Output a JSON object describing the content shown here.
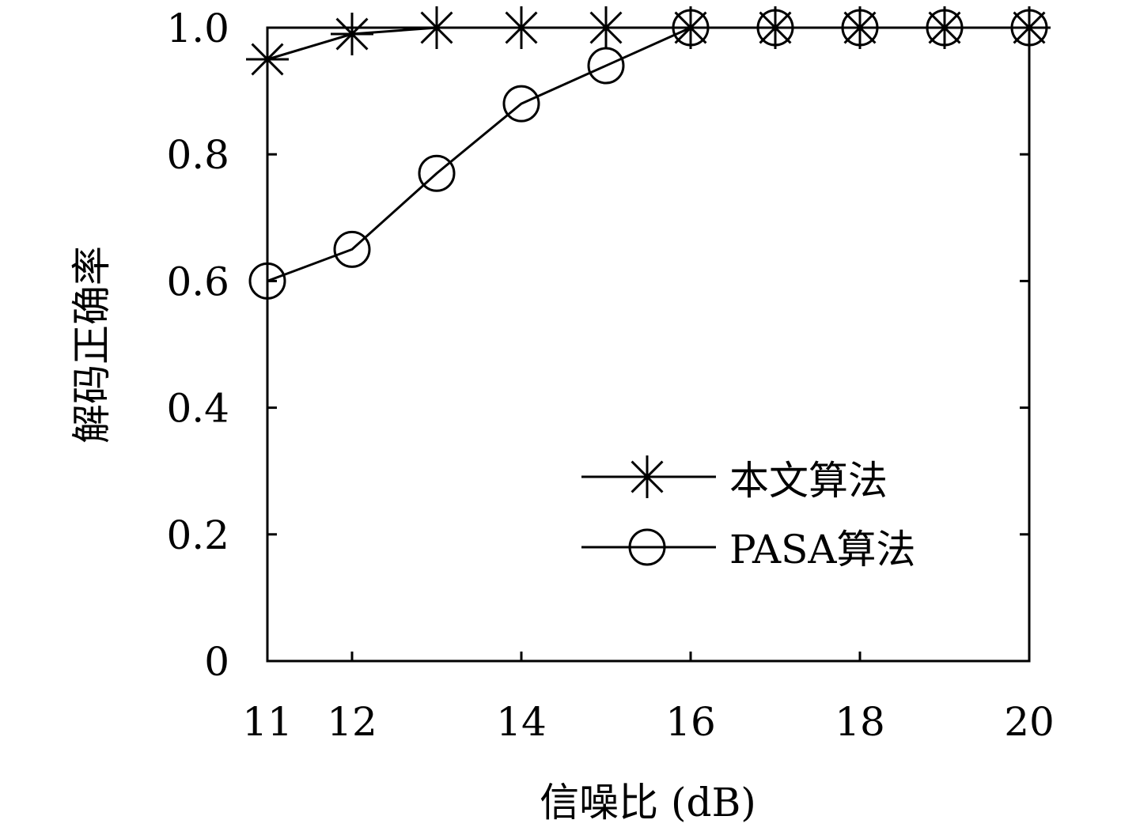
{
  "chart_data": {
    "type": "line",
    "title": "",
    "xlabel": "信噪比 (dB)",
    "ylabel": "解码正确率",
    "x": [
      11,
      12,
      13,
      14,
      15,
      16,
      17,
      18,
      19,
      20
    ],
    "xlim": [
      11,
      20
    ],
    "ylim": [
      0,
      1
    ],
    "xticks": [
      11,
      12,
      14,
      16,
      18,
      20
    ],
    "xtick_labels": [
      "11",
      "12",
      "14",
      "16",
      "18",
      "20"
    ],
    "yticks": [
      0,
      0.2,
      0.4,
      0.6,
      0.8,
      1.0
    ],
    "ytick_labels": [
      "0",
      "0.2",
      "0.4",
      "0.6",
      "0.8",
      "1.0"
    ],
    "grid": false,
    "legend_position": "bottom-right",
    "series": [
      {
        "name": "本文算法",
        "marker": "asterisk",
        "color": "#000000",
        "values": [
          0.95,
          0.99,
          1.0,
          1.0,
          1.0,
          1.0,
          1.0,
          1.0,
          1.0,
          1.0
        ]
      },
      {
        "name": "PASA算法",
        "marker": "circle",
        "color": "#000000",
        "values": [
          0.6,
          0.65,
          0.77,
          0.88,
          0.94,
          1.0,
          1.0,
          1.0,
          1.0,
          1.0
        ]
      }
    ]
  }
}
